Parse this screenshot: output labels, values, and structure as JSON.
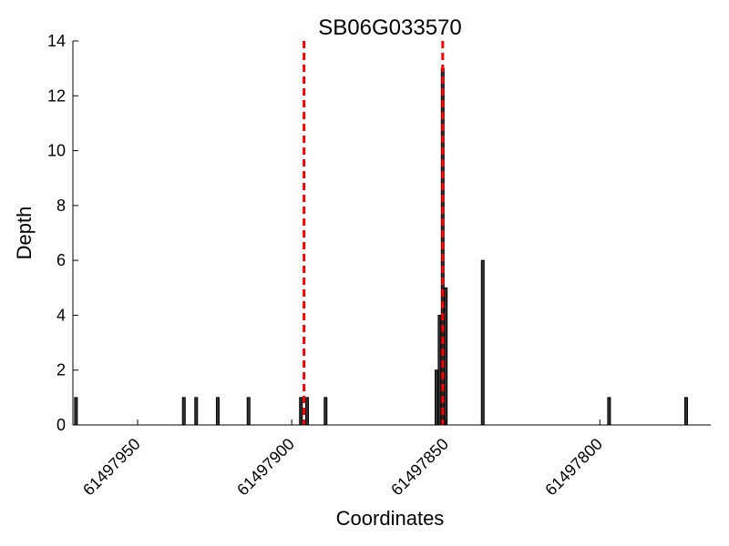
{
  "chart_data": {
    "type": "bar",
    "title": "SB06G033570",
    "xlabel": "Coordinates",
    "ylabel": "Depth",
    "x_axis_reversed": true,
    "xlim": [
      61497971,
      61497764
    ],
    "ylim": [
      0,
      14
    ],
    "x_ticks": [
      {
        "value": 61497950,
        "label": "61497950"
      },
      {
        "value": 61497900,
        "label": "61497900"
      },
      {
        "value": 61497850,
        "label": "61497850"
      },
      {
        "value": 61497800,
        "label": "61497800"
      }
    ],
    "y_ticks": [
      {
        "value": 0,
        "label": "0"
      },
      {
        "value": 2,
        "label": "2"
      },
      {
        "value": 4,
        "label": "4"
      },
      {
        "value": 6,
        "label": "6"
      },
      {
        "value": 8,
        "label": "8"
      },
      {
        "value": 10,
        "label": "10"
      },
      {
        "value": 12,
        "label": "12"
      },
      {
        "value": 14,
        "label": "14"
      }
    ],
    "bars": [
      {
        "x": 61497970,
        "depth": 1
      },
      {
        "x": 61497935,
        "depth": 1
      },
      {
        "x": 61497931,
        "depth": 1
      },
      {
        "x": 61497924,
        "depth": 1
      },
      {
        "x": 61497914,
        "depth": 1
      },
      {
        "x": 61497897,
        "depth": 1
      },
      {
        "x": 61497895,
        "depth": 1
      },
      {
        "x": 61497889,
        "depth": 1
      },
      {
        "x": 61497853,
        "depth": 2
      },
      {
        "x": 61497852,
        "depth": 4
      },
      {
        "x": 61497851,
        "depth": 13
      },
      {
        "x": 61497850,
        "depth": 5
      },
      {
        "x": 61497838,
        "depth": 6
      },
      {
        "x": 61497797,
        "depth": 1
      },
      {
        "x": 61497772,
        "depth": 1
      }
    ],
    "bar_color": "#333333",
    "markers": [
      {
        "x": 61497896,
        "style": "dashed",
        "color": "#ff0000"
      },
      {
        "x": 61497851,
        "style": "dashed",
        "color": "#ff0000"
      }
    ],
    "grid": false,
    "legend": "none"
  }
}
